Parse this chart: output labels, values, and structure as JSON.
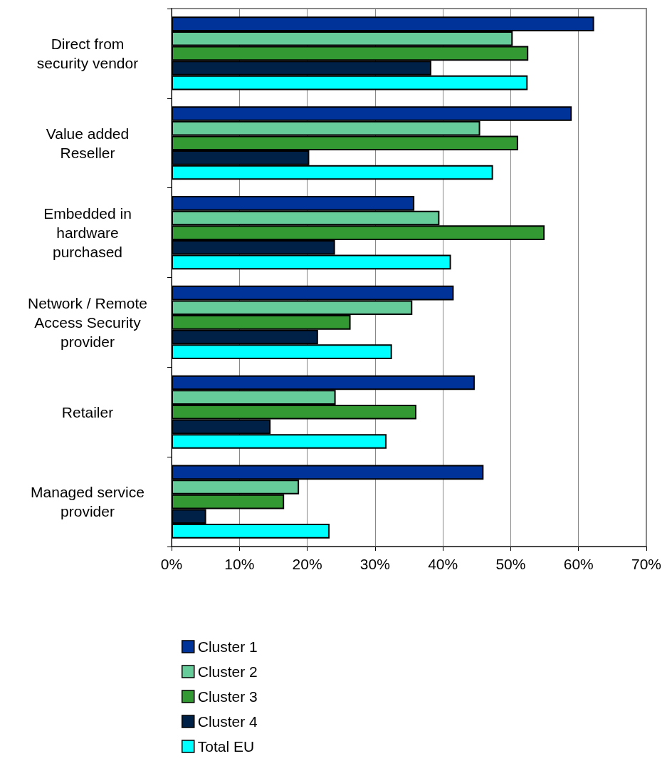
{
  "chart_data": {
    "type": "bar",
    "orientation": "horizontal",
    "categories": [
      "Direct from\nsecurity vendor",
      "Value added\nReseller",
      "Embedded in\nhardware\npurchased",
      "Network / Remote\nAccess Security\nprovider",
      "Retailer",
      "Managed service\nprovider"
    ],
    "series": [
      {
        "name": "Cluster 1",
        "color": "#003399",
        "values": [
          62.3,
          59.0,
          35.8,
          41.6,
          44.7,
          46.0
        ]
      },
      {
        "name": "Cluster 2",
        "color": "#66cc99",
        "values": [
          50.3,
          45.5,
          39.5,
          35.5,
          24.2,
          18.8
        ]
      },
      {
        "name": "Cluster 3",
        "color": "#339933",
        "values": [
          52.6,
          51.1,
          55.0,
          26.4,
          36.1,
          16.6
        ]
      },
      {
        "name": "Cluster 4",
        "color": "#002147",
        "values": [
          38.3,
          20.3,
          24.1,
          21.6,
          14.6,
          5.1
        ]
      },
      {
        "name": "Total EU",
        "color": "#00ffff",
        "values": [
          52.5,
          47.4,
          41.2,
          32.5,
          31.7,
          23.3
        ]
      }
    ],
    "xlim": [
      0,
      70
    ],
    "xticks": [
      {
        "value": 0,
        "label": "0%"
      },
      {
        "value": 10,
        "label": "10%"
      },
      {
        "value": 20,
        "label": "20%"
      },
      {
        "value": 30,
        "label": "30%"
      },
      {
        "value": 40,
        "label": "40%"
      },
      {
        "value": 50,
        "label": "50%"
      },
      {
        "value": 60,
        "label": "60%"
      },
      {
        "value": 70,
        "label": "70%"
      }
    ],
    "grid": "x",
    "legend": "bottom"
  }
}
